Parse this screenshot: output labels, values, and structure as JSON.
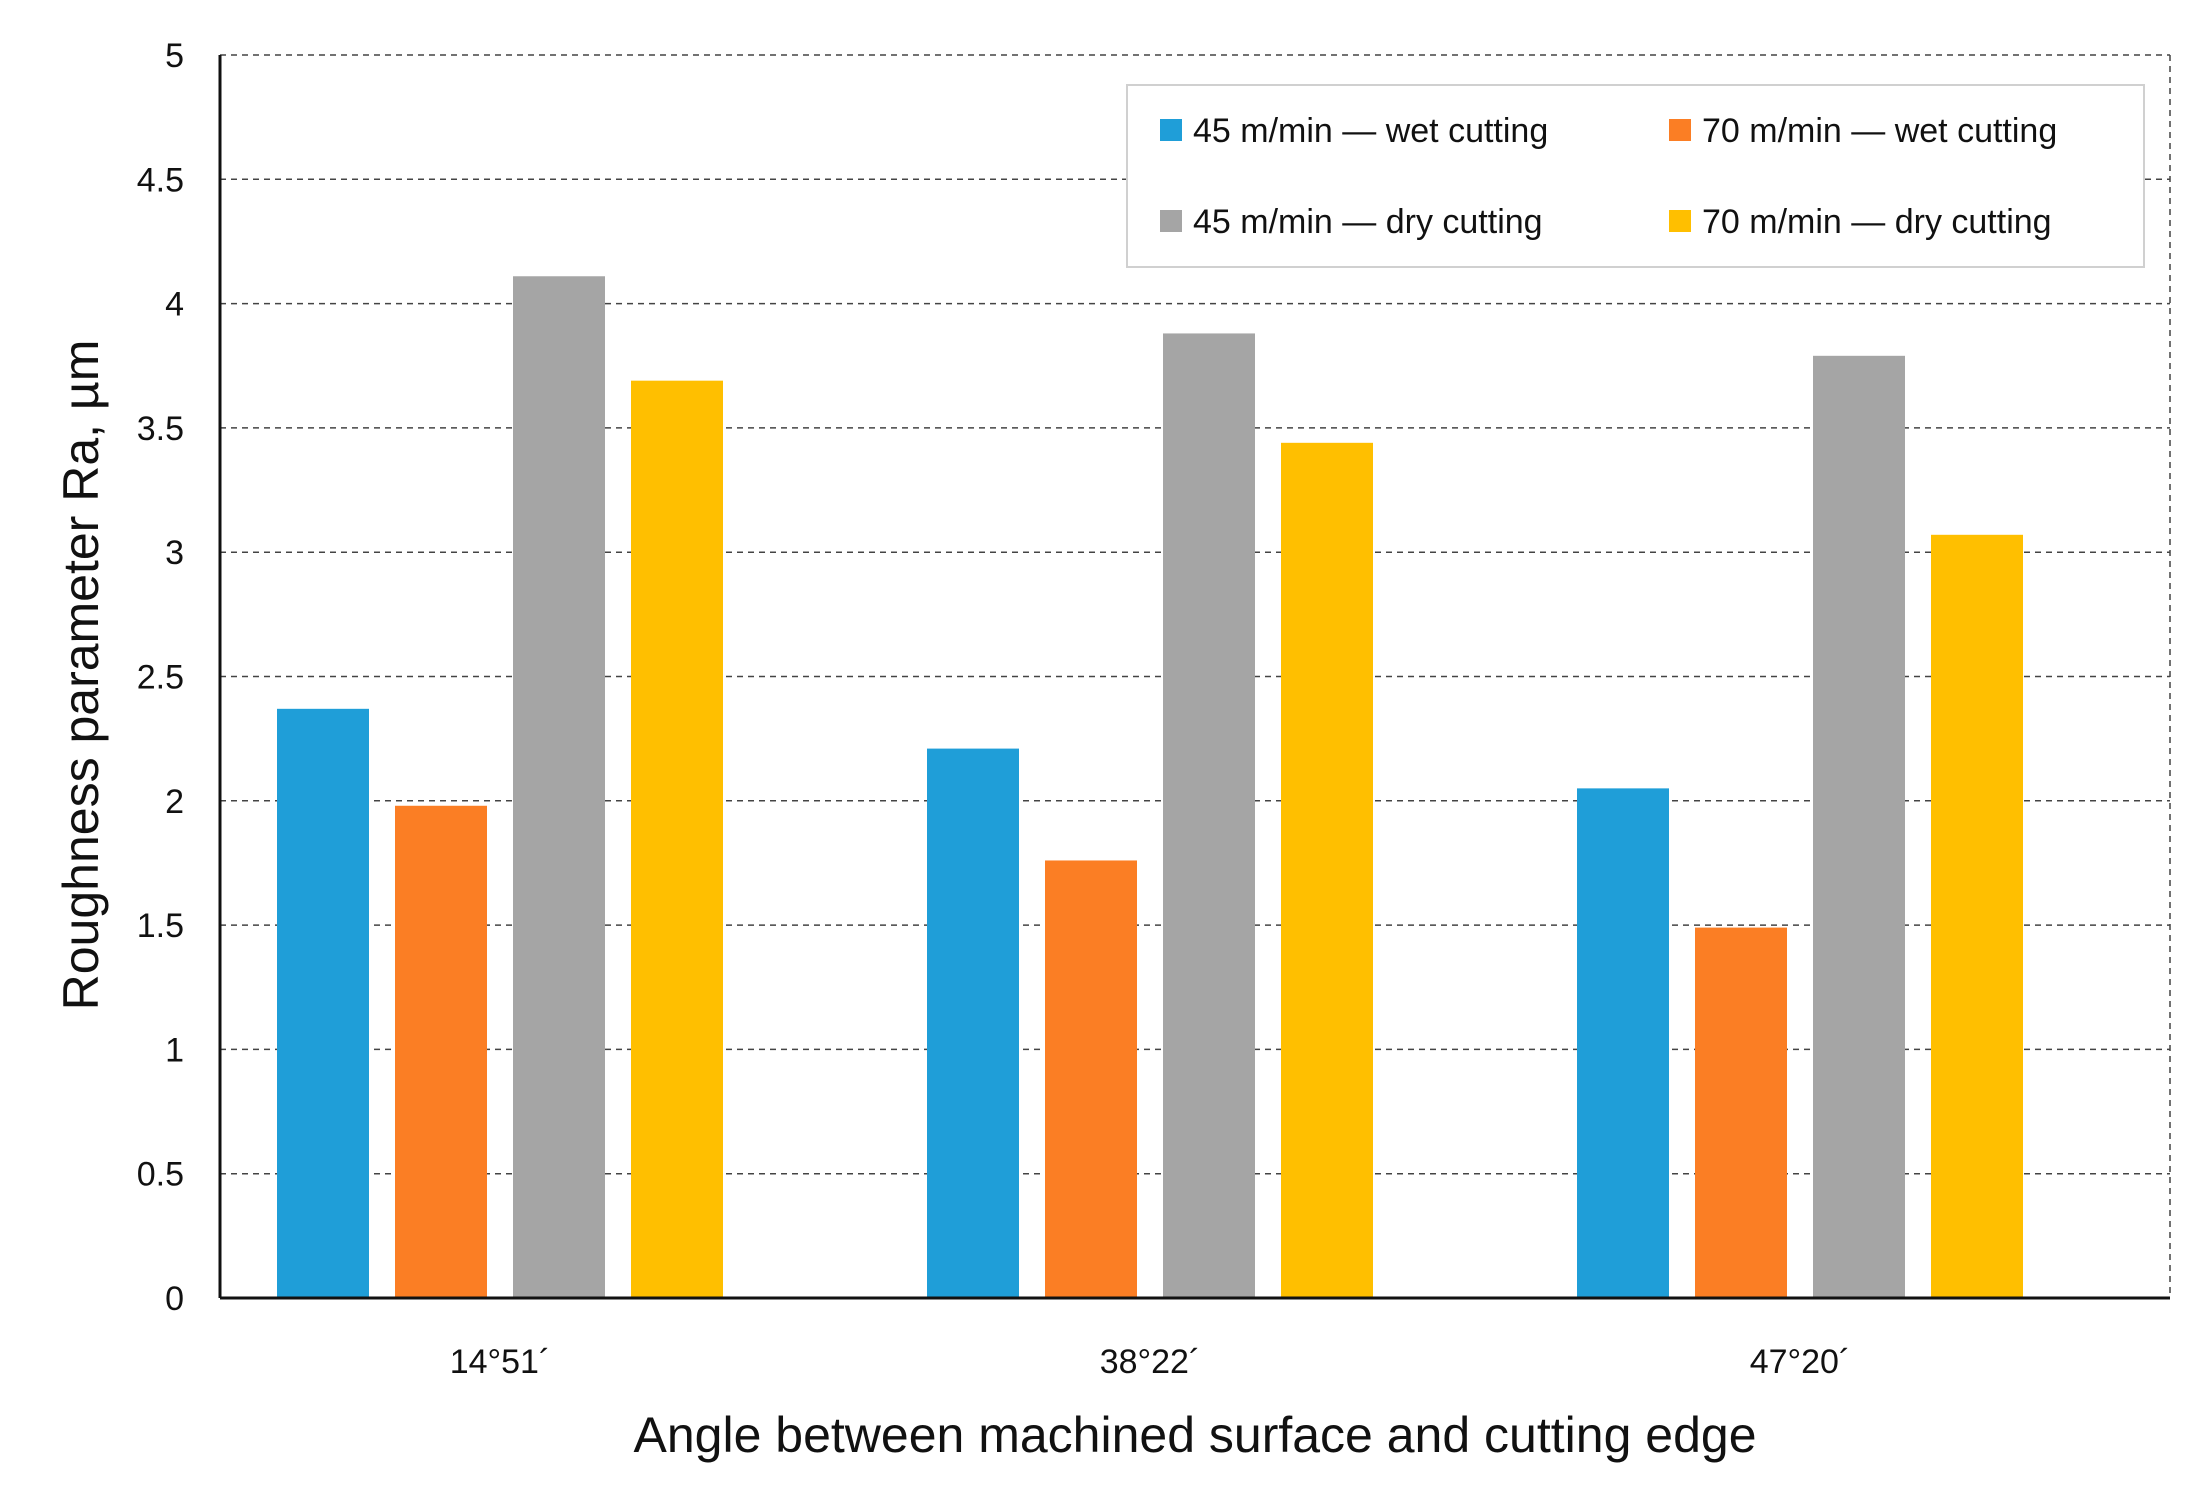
{
  "chart_data": {
    "type": "bar",
    "title": "",
    "xlabel": "Angle between machined surface and cutting edge",
    "ylabel": "Roughness parameter Ra, µm",
    "categories": [
      "14°51´",
      "38°22´",
      "47°20´"
    ],
    "ylim": [
      0,
      5
    ],
    "yticks": [
      "0",
      "0.5",
      "1",
      "1.5",
      "2",
      "2.5",
      "3",
      "3.5",
      "4",
      "4.5",
      "5"
    ],
    "grid": "horizontal dashed",
    "legend_position": "top-right",
    "series": [
      {
        "name": "45 m/min — wet cutting",
        "color": "#1f9ed8",
        "values": [
          2.37,
          2.21,
          2.05
        ]
      },
      {
        "name": "70 m/min — wet cutting",
        "color": "#fb7e24",
        "values": [
          1.98,
          1.76,
          1.49
        ]
      },
      {
        "name": "45 m/min — dry cutting",
        "color": "#a5a5a5",
        "values": [
          4.11,
          3.88,
          3.79
        ]
      },
      {
        "name": "70 m/min — dry cutting",
        "color": "#ffbf00",
        "values": [
          3.69,
          3.44,
          3.07
        ]
      }
    ]
  }
}
